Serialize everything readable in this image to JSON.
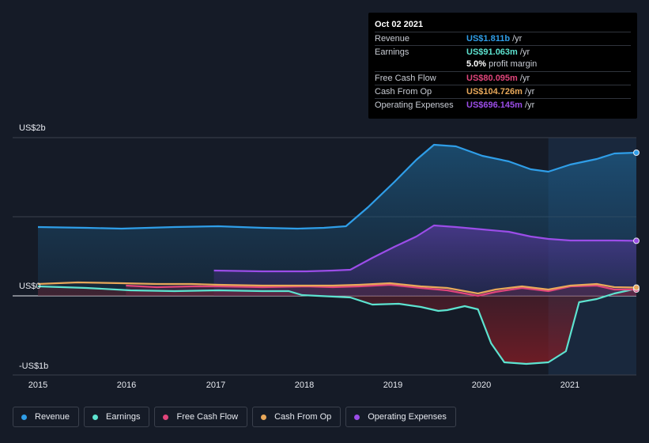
{
  "chart_data": {
    "type": "area",
    "title": "",
    "y_axis": {
      "labels": [
        "US$2b",
        "US$0",
        "-US$1b"
      ],
      "unit": "US$",
      "ylim": [
        -1.0,
        2.0
      ]
    },
    "x_axis": {
      "labels": [
        "2015",
        "2016",
        "2017",
        "2018",
        "2019",
        "2020",
        "2021"
      ],
      "xlim": [
        2014.95,
        2021.75
      ]
    },
    "forecast_start": 2020.75,
    "series": [
      {
        "name": "Revenue",
        "color": "#2f9ee8",
        "fill": true,
        "points": [
          [
            2014.95,
            0.87
          ],
          [
            2015.5,
            0.86
          ],
          [
            2015.9,
            0.85
          ],
          [
            2016.5,
            0.87
          ],
          [
            2017.0,
            0.88
          ],
          [
            2017.5,
            0.86
          ],
          [
            2017.9,
            0.85
          ],
          [
            2018.2,
            0.86
          ],
          [
            2018.45,
            0.88
          ],
          [
            2018.7,
            1.12
          ],
          [
            2019.0,
            1.44
          ],
          [
            2019.25,
            1.72
          ],
          [
            2019.45,
            1.91
          ],
          [
            2019.7,
            1.89
          ],
          [
            2020.0,
            1.77
          ],
          [
            2020.3,
            1.7
          ],
          [
            2020.55,
            1.6
          ],
          [
            2020.75,
            1.57
          ],
          [
            2021.0,
            1.66
          ],
          [
            2021.3,
            1.73
          ],
          [
            2021.5,
            1.8
          ],
          [
            2021.75,
            1.81
          ]
        ]
      },
      {
        "name": "Operating Expenses",
        "color": "#9b4de8",
        "fill": true,
        "points": [
          [
            2016.95,
            0.32
          ],
          [
            2017.5,
            0.31
          ],
          [
            2018.0,
            0.31
          ],
          [
            2018.3,
            0.32
          ],
          [
            2018.5,
            0.33
          ],
          [
            2018.75,
            0.48
          ],
          [
            2019.0,
            0.62
          ],
          [
            2019.25,
            0.75
          ],
          [
            2019.45,
            0.89
          ],
          [
            2019.7,
            0.87
          ],
          [
            2020.0,
            0.84
          ],
          [
            2020.3,
            0.81
          ],
          [
            2020.55,
            0.75
          ],
          [
            2020.75,
            0.72
          ],
          [
            2021.0,
            0.7
          ],
          [
            2021.5,
            0.7
          ],
          [
            2021.75,
            0.696
          ]
        ]
      },
      {
        "name": "Earnings",
        "color": "#5de3d0",
        "fill": true,
        "points": [
          [
            2014.95,
            0.12
          ],
          [
            2015.5,
            0.1
          ],
          [
            2016.0,
            0.07
          ],
          [
            2016.5,
            0.06
          ],
          [
            2017.0,
            0.07
          ],
          [
            2017.5,
            0.06
          ],
          [
            2017.8,
            0.06
          ],
          [
            2017.95,
            0.01
          ],
          [
            2018.5,
            -0.02
          ],
          [
            2018.75,
            -0.11
          ],
          [
            2019.05,
            -0.1
          ],
          [
            2019.3,
            -0.14
          ],
          [
            2019.5,
            -0.19
          ],
          [
            2019.6,
            -0.18
          ],
          [
            2019.8,
            -0.13
          ],
          [
            2019.95,
            -0.17
          ],
          [
            2020.1,
            -0.6
          ],
          [
            2020.25,
            -0.84
          ],
          [
            2020.5,
            -0.86
          ],
          [
            2020.75,
            -0.84
          ],
          [
            2020.95,
            -0.7
          ],
          [
            2021.1,
            -0.08
          ],
          [
            2021.3,
            -0.04
          ],
          [
            2021.5,
            0.03
          ],
          [
            2021.75,
            0.091
          ]
        ]
      },
      {
        "name": "Free Cash Flow",
        "color": "#e0457b",
        "fill": true,
        "points": [
          [
            2015.95,
            0.13
          ],
          [
            2016.3,
            0.11
          ],
          [
            2016.7,
            0.12
          ],
          [
            2017.0,
            0.12
          ],
          [
            2017.5,
            0.11
          ],
          [
            2018.0,
            0.12
          ],
          [
            2018.3,
            0.11
          ],
          [
            2018.6,
            0.12
          ],
          [
            2018.95,
            0.14
          ],
          [
            2019.3,
            0.1
          ],
          [
            2019.6,
            0.07
          ],
          [
            2019.95,
            0.0
          ],
          [
            2020.15,
            0.05
          ],
          [
            2020.45,
            0.1
          ],
          [
            2020.75,
            0.06
          ],
          [
            2021.0,
            0.12
          ],
          [
            2021.3,
            0.13
          ],
          [
            2021.5,
            0.08
          ],
          [
            2021.75,
            0.08
          ]
        ]
      },
      {
        "name": "Cash From Op",
        "color": "#e8a85a",
        "fill": false,
        "points": [
          [
            2014.95,
            0.15
          ],
          [
            2015.4,
            0.17
          ],
          [
            2015.9,
            0.16
          ],
          [
            2016.3,
            0.15
          ],
          [
            2016.7,
            0.15
          ],
          [
            2017.0,
            0.14
          ],
          [
            2017.5,
            0.13
          ],
          [
            2018.0,
            0.13
          ],
          [
            2018.3,
            0.13
          ],
          [
            2018.6,
            0.14
          ],
          [
            2018.95,
            0.16
          ],
          [
            2019.3,
            0.12
          ],
          [
            2019.6,
            0.1
          ],
          [
            2019.95,
            0.03
          ],
          [
            2020.15,
            0.08
          ],
          [
            2020.45,
            0.12
          ],
          [
            2020.75,
            0.08
          ],
          [
            2021.0,
            0.13
          ],
          [
            2021.3,
            0.15
          ],
          [
            2021.5,
            0.11
          ],
          [
            2021.75,
            0.105
          ]
        ]
      }
    ]
  },
  "tooltip": {
    "date": "Oct 02 2021",
    "rows": [
      {
        "label": "Revenue",
        "value": "US$1.811b",
        "unit": " /yr",
        "color": "#2f9ee8"
      },
      {
        "label": "Earnings",
        "value": "US$91.063m",
        "unit": " /yr",
        "color": "#5de3d0"
      },
      {
        "label": "",
        "value": "5.0%",
        "unit": " profit margin",
        "color": "#ffffff"
      },
      {
        "label": "Free Cash Flow",
        "value": "US$80.095m",
        "unit": " /yr",
        "color": "#e0457b"
      },
      {
        "label": "Cash From Op",
        "value": "US$104.726m",
        "unit": " /yr",
        "color": "#e8a85a"
      },
      {
        "label": "Operating Expenses",
        "value": "US$696.145m",
        "unit": " /yr",
        "color": "#9b4de8"
      }
    ]
  },
  "legend": [
    {
      "label": "Revenue",
      "color": "#2f9ee8"
    },
    {
      "label": "Earnings",
      "color": "#5de3d0"
    },
    {
      "label": "Free Cash Flow",
      "color": "#e0457b"
    },
    {
      "label": "Cash From Op",
      "color": "#e8a85a"
    },
    {
      "label": "Operating Expenses",
      "color": "#9b4de8"
    }
  ]
}
